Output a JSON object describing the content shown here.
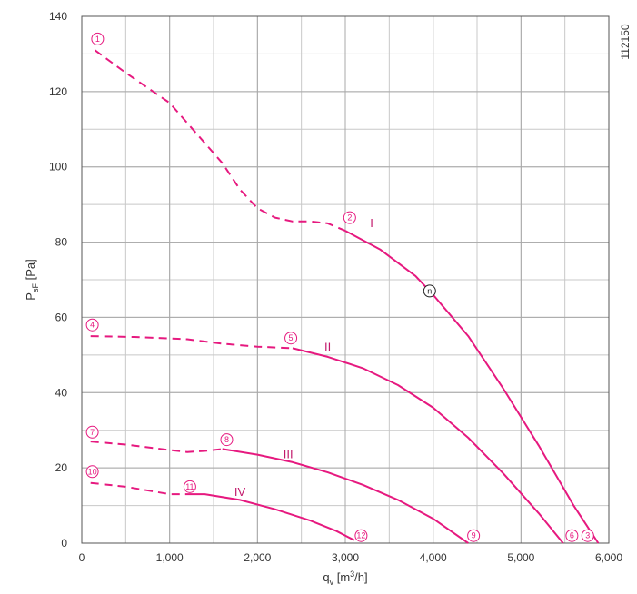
{
  "chart_data": {
    "type": "line",
    "xlim": [
      0,
      6000
    ],
    "ylim": [
      0,
      140
    ],
    "x_ticks": [
      0,
      1000,
      2000,
      3000,
      4000,
      5000,
      6000
    ],
    "x_tick_labels": [
      "0",
      "1,000",
      "2,000",
      "3,000",
      "4,000",
      "5,000",
      "6,000"
    ],
    "y_ticks": [
      0,
      20,
      40,
      60,
      80,
      100,
      120,
      140
    ],
    "y_tick_labels": [
      "0",
      "20",
      "40",
      "60",
      "80",
      "100",
      "120",
      "140"
    ],
    "x_minor_step": 500,
    "y_minor_step": 10,
    "xlabel": {
      "main": "q",
      "sub": "v",
      "unit_pre": " [m",
      "sup": "3",
      "unit_post": "/h]"
    },
    "ylabel": {
      "main": "P",
      "sub": "sF",
      "unit": " [Pa]"
    },
    "code": "112150",
    "grid": true,
    "line_color": "#e6197f",
    "series": [
      {
        "name": "I",
        "dashed": [
          [
            150,
            131
          ],
          [
            500,
            125
          ],
          [
            1000,
            117
          ],
          [
            1300,
            109
          ],
          [
            1600,
            101
          ],
          [
            1800,
            94
          ],
          [
            2000,
            89
          ],
          [
            2200,
            86.5
          ],
          [
            2400,
            85.5
          ],
          [
            2600,
            85.5
          ],
          [
            2800,
            85
          ],
          [
            3000,
            83
          ]
        ],
        "solid": [
          [
            3000,
            83
          ],
          [
            3400,
            78
          ],
          [
            3800,
            71
          ],
          [
            4000,
            66
          ],
          [
            4400,
            55
          ],
          [
            4800,
            41
          ],
          [
            5200,
            26
          ],
          [
            5600,
            10
          ],
          [
            5880,
            0
          ]
        ],
        "label_pos": [
          3300,
          85
        ]
      },
      {
        "name": "II",
        "dashed": [
          [
            100,
            55
          ],
          [
            600,
            54.8
          ],
          [
            1200,
            54.2
          ],
          [
            1600,
            53
          ],
          [
            2000,
            52.2
          ],
          [
            2400,
            51.8
          ]
        ],
        "solid": [
          [
            2400,
            51.8
          ],
          [
            2800,
            49.5
          ],
          [
            3200,
            46.5
          ],
          [
            3600,
            42
          ],
          [
            4000,
            36
          ],
          [
            4400,
            28
          ],
          [
            4800,
            18.5
          ],
          [
            5200,
            8
          ],
          [
            5480,
            0
          ]
        ],
        "label_pos": [
          2800,
          52
        ]
      },
      {
        "name": "III",
        "dashed": [
          [
            100,
            27
          ],
          [
            500,
            26.2
          ],
          [
            900,
            25
          ],
          [
            1200,
            24.2
          ],
          [
            1400,
            24.5
          ],
          [
            1600,
            25
          ]
        ],
        "solid": [
          [
            1600,
            25
          ],
          [
            2000,
            23.5
          ],
          [
            2400,
            21.5
          ],
          [
            2800,
            18.8
          ],
          [
            3200,
            15.5
          ],
          [
            3600,
            11.5
          ],
          [
            4000,
            6.5
          ],
          [
            4400,
            0
          ]
        ],
        "label_pos": [
          2350,
          23.5
        ]
      },
      {
        "name": "IV",
        "dashed": [
          [
            100,
            16
          ],
          [
            500,
            15
          ],
          [
            800,
            13.8
          ],
          [
            1000,
            13
          ],
          [
            1200,
            13
          ]
        ],
        "solid": [
          [
            1200,
            13
          ],
          [
            1400,
            13
          ],
          [
            1800,
            11.5
          ],
          [
            2200,
            9
          ],
          [
            2600,
            6
          ],
          [
            2900,
            3.2
          ],
          [
            3100,
            0.8
          ]
        ],
        "label_pos": [
          1800,
          13.5
        ]
      }
    ],
    "point_markers": [
      {
        "label": "1",
        "x": 180,
        "y": 134,
        "style": "pink"
      },
      {
        "label": "2",
        "x": 3050,
        "y": 86.5,
        "style": "pink"
      },
      {
        "label": "3",
        "x": 5760,
        "y": 2,
        "style": "pink"
      },
      {
        "label": "4",
        "x": 120,
        "y": 58,
        "style": "pink"
      },
      {
        "label": "5",
        "x": 2380,
        "y": 54.5,
        "style": "pink"
      },
      {
        "label": "6",
        "x": 5580,
        "y": 2,
        "style": "pink"
      },
      {
        "label": "7",
        "x": 120,
        "y": 29.5,
        "style": "pink"
      },
      {
        "label": "8",
        "x": 1650,
        "y": 27.5,
        "style": "pink"
      },
      {
        "label": "9",
        "x": 4460,
        "y": 2,
        "style": "pink"
      },
      {
        "label": "10",
        "x": 120,
        "y": 19,
        "style": "pink"
      },
      {
        "label": "11",
        "x": 1230,
        "y": 15,
        "style": "pink"
      },
      {
        "label": "12",
        "x": 3180,
        "y": 2,
        "style": "pink"
      },
      {
        "label": "n",
        "x": 3960,
        "y": 67,
        "style": "black"
      }
    ]
  }
}
